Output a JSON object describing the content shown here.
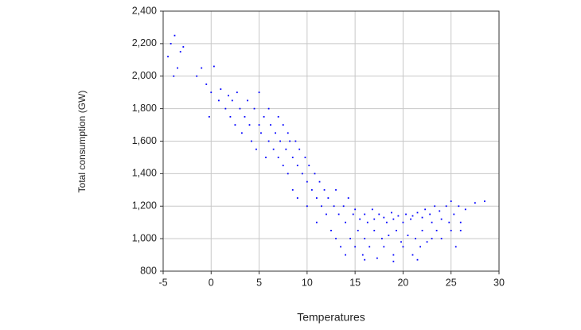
{
  "chart_data": {
    "type": "scatter",
    "xlabel": "Temperatures",
    "ylabel": "Total consumption (GW)",
    "color": "#0000ff",
    "grid": true,
    "xlim": [
      -5,
      30
    ],
    "xticks": [
      -5,
      0,
      5,
      10,
      15,
      20,
      25,
      30
    ],
    "ylim": [
      800,
      2400
    ],
    "yticks": [
      800,
      {
        "value": 1000,
        "label": "1,000"
      },
      {
        "value": 1200,
        "label": "1,200"
      },
      {
        "value": 1400,
        "label": "1,400"
      },
      {
        "value": 1600,
        "label": "1,600"
      },
      {
        "value": 1800,
        "label": "1,800"
      },
      {
        "value": 2000,
        "label": "2,000"
      },
      {
        "value": 2200,
        "label": "2,200"
      },
      {
        "value": 2400,
        "label": "2,400"
      }
    ],
    "x": [
      -4.2,
      -3.8,
      -3.5,
      -3.2,
      -4.5,
      -2.9,
      -3.9,
      -1.5,
      -1,
      -0.5,
      0,
      0.3,
      -0.2,
      0.8,
      1,
      1.5,
      1.8,
      2,
      2.2,
      2.5,
      2.7,
      3,
      3.2,
      3.5,
      3.8,
      4,
      4.2,
      4.5,
      4.7,
      5,
      5,
      5.2,
      5.5,
      5.7,
      6,
      6,
      6.2,
      6.5,
      6.7,
      7,
      7,
      7.2,
      7.5,
      7.5,
      7.8,
      8,
      8,
      8.2,
      8.5,
      8.5,
      8.8,
      9,
      9,
      9.2,
      9.5,
      9.8,
      10,
      10,
      10.2,
      10.5,
      10.8,
      11,
      11,
      11.3,
      11.5,
      11.8,
      12,
      12.2,
      12.5,
      12.8,
      13,
      13,
      13.3,
      13.5,
      13.8,
      14,
      14,
      14.3,
      14.5,
      14.8,
      15,
      15,
      15.3,
      15.5,
      15.8,
      16,
      16,
      16.3,
      16.5,
      16.8,
      17,
      17,
      17.3,
      17.5,
      17.8,
      18,
      18,
      18.3,
      18.5,
      18.8,
      19,
      19,
      19.3,
      19.5,
      19.8,
      20,
      20,
      20.3,
      20.5,
      20.8,
      21,
      21,
      21.3,
      21.5,
      21.8,
      22,
      22,
      22.3,
      22.5,
      22.8,
      23,
      23,
      23.3,
      23.5,
      23.8,
      24,
      24,
      24.5,
      24.8,
      25,
      25,
      25.3,
      25.5,
      25.8,
      26,
      26,
      26.5,
      27.5,
      28.5,
      16,
      19,
      21.5
    ],
    "values": [
      2200,
      2250,
      2050,
      2150,
      2120,
      2180,
      2000,
      2000,
      2050,
      1950,
      1900,
      2060,
      1750,
      1850,
      1920,
      1800,
      1880,
      1750,
      1850,
      1700,
      1900,
      1800,
      1650,
      1750,
      1850,
      1700,
      1600,
      1800,
      1550,
      1700,
      1900,
      1650,
      1750,
      1500,
      1600,
      1800,
      1700,
      1550,
      1650,
      1500,
      1750,
      1600,
      1450,
      1700,
      1550,
      1650,
      1400,
      1600,
      1500,
      1300,
      1600,
      1450,
      1250,
      1550,
      1400,
      1500,
      1350,
      1200,
      1450,
      1300,
      1400,
      1250,
      1100,
      1350,
      1200,
      1300,
      1150,
      1250,
      1050,
      1200,
      1300,
      1000,
      1150,
      950,
      1200,
      1100,
      900,
      1250,
      1000,
      1150,
      950,
      1180,
      1050,
      1120,
      900,
      1150,
      1000,
      1100,
      950,
      1180,
      1050,
      1120,
      880,
      1150,
      1000,
      1130,
      950,
      1100,
      1020,
      1160,
      900,
      1120,
      1050,
      1140,
      980,
      1100,
      950,
      1150,
      1020,
      1120,
      900,
      1140,
      1000,
      1160,
      950,
      1130,
      1050,
      1180,
      980,
      1150,
      1100,
      1000,
      1200,
      1050,
      1170,
      1120,
      1000,
      1200,
      1100,
      1230,
      1050,
      1150,
      950,
      1200,
      1100,
      1050,
      1180,
      1220,
      1230,
      870,
      860,
      870
    ]
  }
}
